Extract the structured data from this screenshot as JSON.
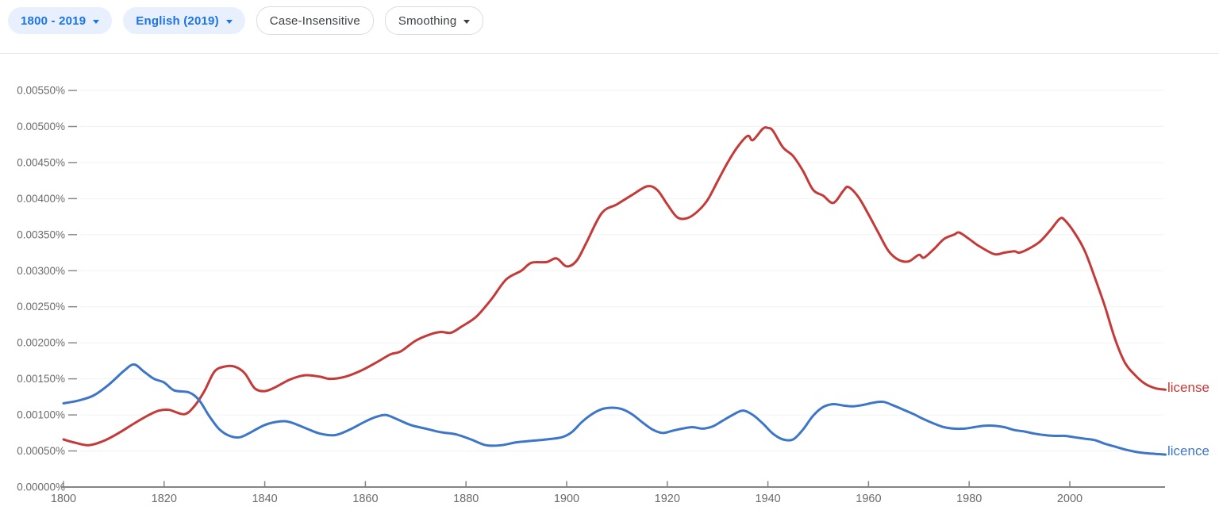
{
  "toolbar": {
    "chips": [
      {
        "label": "1800 - 2019",
        "style": "filled",
        "dropdown": true
      },
      {
        "label": "English (2019)",
        "style": "filled",
        "dropdown": true
      },
      {
        "label": "Case-Insensitive",
        "style": "outlined",
        "dropdown": false
      },
      {
        "label": "Smoothing",
        "style": "outlined",
        "dropdown": true
      }
    ]
  },
  "colors": {
    "series_license": "#c43a38",
    "series_licence": "#3d76c8",
    "chip_filled_bg": "#e8f0fe",
    "chip_filled_text": "#1a73e8",
    "chip_outline_border": "#dadce0",
    "chip_outline_text": "#3c4043",
    "axis_text": "#6b6b6b",
    "axis_line": "#848484",
    "gridline": "#f2f2f2"
  },
  "chart_data": {
    "type": "line",
    "title": "",
    "xlabel": "",
    "ylabel": "",
    "grid": true,
    "legend_position": "end-of-line",
    "x_axis": {
      "range": [
        1800,
        2019
      ],
      "ticks": [
        1800,
        1820,
        1840,
        1860,
        1880,
        1900,
        1920,
        1940,
        1960,
        1980,
        2000
      ]
    },
    "y_axis": {
      "range_percent": [
        0,
        0.0055
      ],
      "tick_values": [
        0,
        0.0005,
        0.001,
        0.0015,
        0.002,
        0.0025,
        0.003,
        0.0035,
        0.004,
        0.0045,
        0.005,
        0.0055
      ],
      "tick_labels": [
        "0.00000%",
        "0.00050%",
        "0.00100%",
        "0.00150%",
        "0.00200%",
        "0.00250%",
        "0.00300%",
        "0.00350%",
        "0.00400%",
        "0.00450%",
        "0.00500%",
        "0.00550%"
      ]
    },
    "series": [
      {
        "name": "license",
        "color": "#c43a38",
        "points": [
          [
            1800,
            0.00066
          ],
          [
            1802,
            0.00062
          ],
          [
            1805,
            0.00058
          ],
          [
            1808,
            0.00064
          ],
          [
            1811,
            0.00075
          ],
          [
            1814,
            0.00088
          ],
          [
            1817,
            0.001
          ],
          [
            1819,
            0.00106
          ],
          [
            1821,
            0.00107
          ],
          [
            1824,
            0.00101
          ],
          [
            1826,
            0.00112
          ],
          [
            1828,
            0.00133
          ],
          [
            1830,
            0.0016
          ],
          [
            1832,
            0.00167
          ],
          [
            1834,
            0.00167
          ],
          [
            1836,
            0.00158
          ],
          [
            1838,
            0.00137
          ],
          [
            1840,
            0.00133
          ],
          [
            1842,
            0.00138
          ],
          [
            1845,
            0.00149
          ],
          [
            1848,
            0.00155
          ],
          [
            1851,
            0.00153
          ],
          [
            1853,
            0.0015
          ],
          [
            1856,
            0.00153
          ],
          [
            1859,
            0.00161
          ],
          [
            1862,
            0.00172
          ],
          [
            1865,
            0.00184
          ],
          [
            1867,
            0.00188
          ],
          [
            1870,
            0.00203
          ],
          [
            1873,
            0.00212
          ],
          [
            1875,
            0.00215
          ],
          [
            1877,
            0.00214
          ],
          [
            1879,
            0.00222
          ],
          [
            1882,
            0.00236
          ],
          [
            1885,
            0.0026
          ],
          [
            1888,
            0.00288
          ],
          [
            1891,
            0.003
          ],
          [
            1893,
            0.00311
          ],
          [
            1896,
            0.00312
          ],
          [
            1898,
            0.00317
          ],
          [
            1900,
            0.00306
          ],
          [
            1902,
            0.00314
          ],
          [
            1904,
            0.0034
          ],
          [
            1907,
            0.0038
          ],
          [
            1910,
            0.00392
          ],
          [
            1913,
            0.00405
          ],
          [
            1916,
            0.00417
          ],
          [
            1918,
            0.00412
          ],
          [
            1920,
            0.00392
          ],
          [
            1922,
            0.00374
          ],
          [
            1924,
            0.00373
          ],
          [
            1926,
            0.00382
          ],
          [
            1928,
            0.00398
          ],
          [
            1930,
            0.00424
          ],
          [
            1932,
            0.0045
          ],
          [
            1934,
            0.00472
          ],
          [
            1936,
            0.00487
          ],
          [
            1937,
            0.00481
          ],
          [
            1939,
            0.00497
          ],
          [
            1940,
            0.00498
          ],
          [
            1941,
            0.00494
          ],
          [
            1943,
            0.00471
          ],
          [
            1945,
            0.00459
          ],
          [
            1947,
            0.00438
          ],
          [
            1949,
            0.00412
          ],
          [
            1951,
            0.00404
          ],
          [
            1953,
            0.00394
          ],
          [
            1955,
            0.00411
          ],
          [
            1956,
            0.00416
          ],
          [
            1958,
            0.00402
          ],
          [
            1960,
            0.00378
          ],
          [
            1962,
            0.00352
          ],
          [
            1964,
            0.00327
          ],
          [
            1966,
            0.00315
          ],
          [
            1968,
            0.00313
          ],
          [
            1970,
            0.00322
          ],
          [
            1971,
            0.00318
          ],
          [
            1973,
            0.0033
          ],
          [
            1975,
            0.00344
          ],
          [
            1977,
            0.0035
          ],
          [
            1978,
            0.00353
          ],
          [
            1980,
            0.00344
          ],
          [
            1982,
            0.00334
          ],
          [
            1985,
            0.00323
          ],
          [
            1987,
            0.00325
          ],
          [
            1989,
            0.00327
          ],
          [
            1990,
            0.00325
          ],
          [
            1992,
            0.00331
          ],
          [
            1994,
            0.0034
          ],
          [
            1996,
            0.00355
          ],
          [
            1998,
            0.00372
          ],
          [
            1999,
            0.0037
          ],
          [
            2001,
            0.00352
          ],
          [
            2003,
            0.00327
          ],
          [
            2005,
            0.0029
          ],
          [
            2007,
            0.0025
          ],
          [
            2009,
            0.00205
          ],
          [
            2011,
            0.00172
          ],
          [
            2013,
            0.00155
          ],
          [
            2015,
            0.00143
          ],
          [
            2017,
            0.00137
          ],
          [
            2019,
            0.00135
          ]
        ]
      },
      {
        "name": "licence",
        "color": "#3d76c8",
        "points": [
          [
            1800,
            0.00116
          ],
          [
            1803,
            0.0012
          ],
          [
            1806,
            0.00127
          ],
          [
            1809,
            0.00142
          ],
          [
            1812,
            0.00161
          ],
          [
            1814,
            0.0017
          ],
          [
            1816,
            0.0016
          ],
          [
            1818,
            0.0015
          ],
          [
            1820,
            0.00145
          ],
          [
            1822,
            0.00134
          ],
          [
            1825,
            0.00131
          ],
          [
            1827,
            0.0012
          ],
          [
            1829,
            0.00098
          ],
          [
            1831,
            0.0008
          ],
          [
            1833,
            0.00071
          ],
          [
            1835,
            0.00069
          ],
          [
            1837,
            0.00075
          ],
          [
            1840,
            0.00086
          ],
          [
            1843,
            0.00091
          ],
          [
            1845,
            0.0009
          ],
          [
            1848,
            0.00082
          ],
          [
            1851,
            0.00074
          ],
          [
            1854,
            0.00072
          ],
          [
            1857,
            0.0008
          ],
          [
            1860,
            0.00091
          ],
          [
            1862,
            0.00097
          ],
          [
            1864,
            0.001
          ],
          [
            1866,
            0.00095
          ],
          [
            1869,
            0.00086
          ],
          [
            1872,
            0.00081
          ],
          [
            1875,
            0.00076
          ],
          [
            1878,
            0.00073
          ],
          [
            1881,
            0.00066
          ],
          [
            1884,
            0.00058
          ],
          [
            1887,
            0.00058
          ],
          [
            1890,
            0.00062
          ],
          [
            1893,
            0.00064
          ],
          [
            1896,
            0.00066
          ],
          [
            1899,
            0.00069
          ],
          [
            1901,
            0.00076
          ],
          [
            1903,
            0.0009
          ],
          [
            1905,
            0.00101
          ],
          [
            1907,
            0.00108
          ],
          [
            1909,
            0.0011
          ],
          [
            1911,
            0.00108
          ],
          [
            1913,
            0.00101
          ],
          [
            1915,
            0.0009
          ],
          [
            1917,
            0.0008
          ],
          [
            1919,
            0.00075
          ],
          [
            1921,
            0.00078
          ],
          [
            1923,
            0.00081
          ],
          [
            1925,
            0.00083
          ],
          [
            1927,
            0.00081
          ],
          [
            1929,
            0.00084
          ],
          [
            1931,
            0.00092
          ],
          [
            1933,
            0.001
          ],
          [
            1935,
            0.00106
          ],
          [
            1937,
            0.001
          ],
          [
            1939,
            0.00088
          ],
          [
            1941,
            0.00074
          ],
          [
            1943,
            0.00066
          ],
          [
            1945,
            0.00066
          ],
          [
            1947,
            0.0008
          ],
          [
            1949,
            0.00099
          ],
          [
            1951,
            0.00111
          ],
          [
            1953,
            0.00115
          ],
          [
            1955,
            0.00113
          ],
          [
            1957,
            0.00112
          ],
          [
            1959,
            0.00114
          ],
          [
            1961,
            0.00117
          ],
          [
            1963,
            0.00118
          ],
          [
            1965,
            0.00113
          ],
          [
            1967,
            0.00107
          ],
          [
            1969,
            0.00101
          ],
          [
            1971,
            0.00094
          ],
          [
            1973,
            0.00088
          ],
          [
            1975,
            0.00083
          ],
          [
            1977,
            0.00081
          ],
          [
            1979,
            0.00081
          ],
          [
            1981,
            0.00083
          ],
          [
            1983,
            0.00085
          ],
          [
            1985,
            0.00085
          ],
          [
            1987,
            0.00083
          ],
          [
            1989,
            0.00079
          ],
          [
            1991,
            0.00077
          ],
          [
            1993,
            0.00074
          ],
          [
            1995,
            0.00072
          ],
          [
            1997,
            0.00071
          ],
          [
            1999,
            0.00071
          ],
          [
            2001,
            0.00069
          ],
          [
            2003,
            0.00067
          ],
          [
            2005,
            0.00065
          ],
          [
            2007,
            0.0006
          ],
          [
            2009,
            0.00056
          ],
          [
            2011,
            0.00052
          ],
          [
            2013,
            0.00049
          ],
          [
            2015,
            0.00047
          ],
          [
            2017,
            0.00046
          ],
          [
            2019,
            0.00045
          ]
        ]
      }
    ]
  }
}
